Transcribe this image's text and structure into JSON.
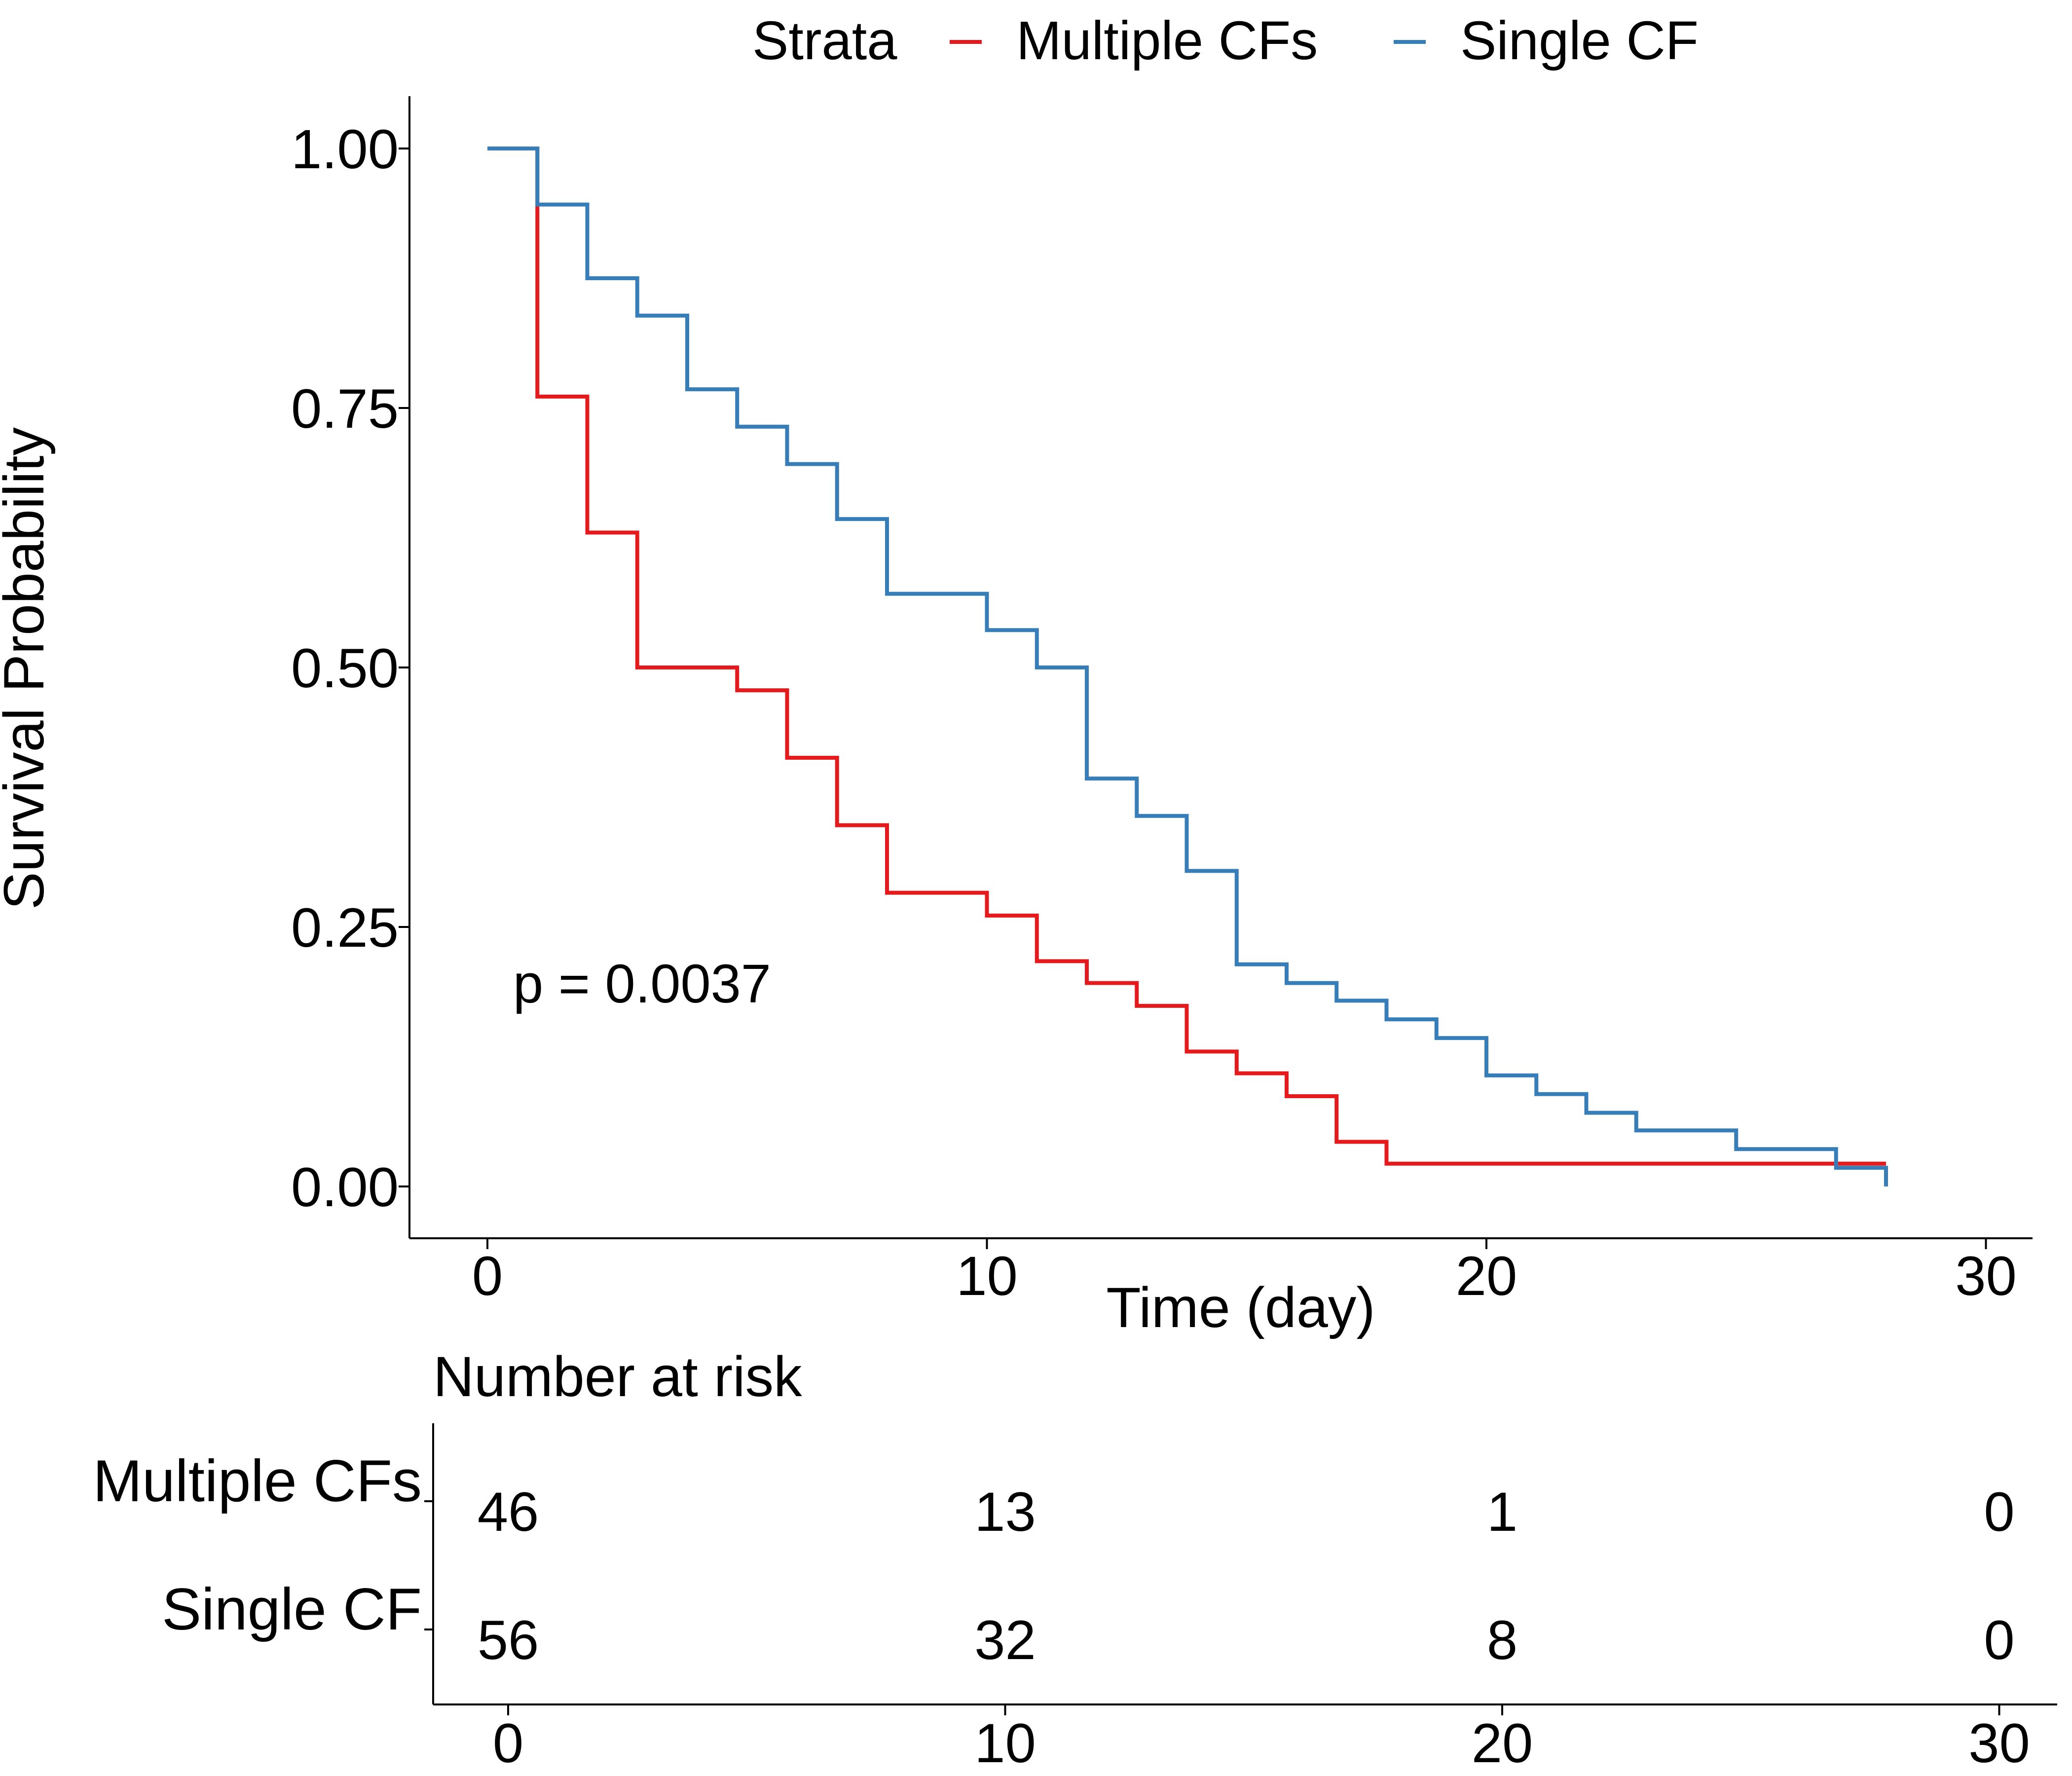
{
  "chart_data": {
    "type": "line",
    "subtype": "step",
    "xlabel": "Time (day)",
    "ylabel": "Survival Probability",
    "xlim": [
      -1.5,
      31.5
    ],
    "ylim": [
      -0.05,
      1.05
    ],
    "x_ticks": [
      "0",
      "10",
      "20",
      "30"
    ],
    "y_ticks": [
      "0.00",
      "0.25",
      "0.50",
      "0.75",
      "1.00"
    ],
    "grid": false,
    "legend": {
      "title": "Strata",
      "position": "top"
    },
    "annotation": "p = 0.0037",
    "series": [
      {
        "name": "Multiple CFs",
        "color": "#e41a1c",
        "x": [
          0,
          1,
          2,
          3,
          5,
          6,
          7,
          8,
          10,
          11,
          12,
          13,
          14,
          15,
          16,
          17,
          18,
          28
        ],
        "y": [
          1.0,
          0.761,
          0.63,
          0.5,
          0.478,
          0.413,
          0.348,
          0.283,
          0.261,
          0.217,
          0.196,
          0.174,
          0.13,
          0.109,
          0.087,
          0.043,
          0.022,
          0.022
        ]
      },
      {
        "name": "Single CF",
        "color": "#377eb8",
        "x": [
          0,
          1,
          2,
          3,
          4,
          5,
          6,
          7,
          8,
          10,
          11,
          12,
          13,
          14,
          15,
          16,
          17,
          18,
          19,
          20,
          21,
          22,
          23,
          25,
          27,
          28
        ],
        "y": [
          1.0,
          0.946,
          0.875,
          0.839,
          0.768,
          0.732,
          0.696,
          0.643,
          0.571,
          0.536,
          0.5,
          0.393,
          0.357,
          0.304,
          0.214,
          0.196,
          0.179,
          0.161,
          0.143,
          0.107,
          0.089,
          0.071,
          0.054,
          0.036,
          0.018,
          0.0
        ]
      }
    ],
    "risk_table": {
      "title": "Number at risk",
      "x_ticks": [
        "0",
        "10",
        "20",
        "30"
      ],
      "rows": [
        {
          "name": "Multiple CFs",
          "color": "#e41a1c",
          "values": [
            "46",
            "13",
            "1",
            "0"
          ]
        },
        {
          "name": "Single CF",
          "color": "#377eb8",
          "values": [
            "56",
            "32",
            "8",
            "0"
          ]
        }
      ]
    }
  }
}
